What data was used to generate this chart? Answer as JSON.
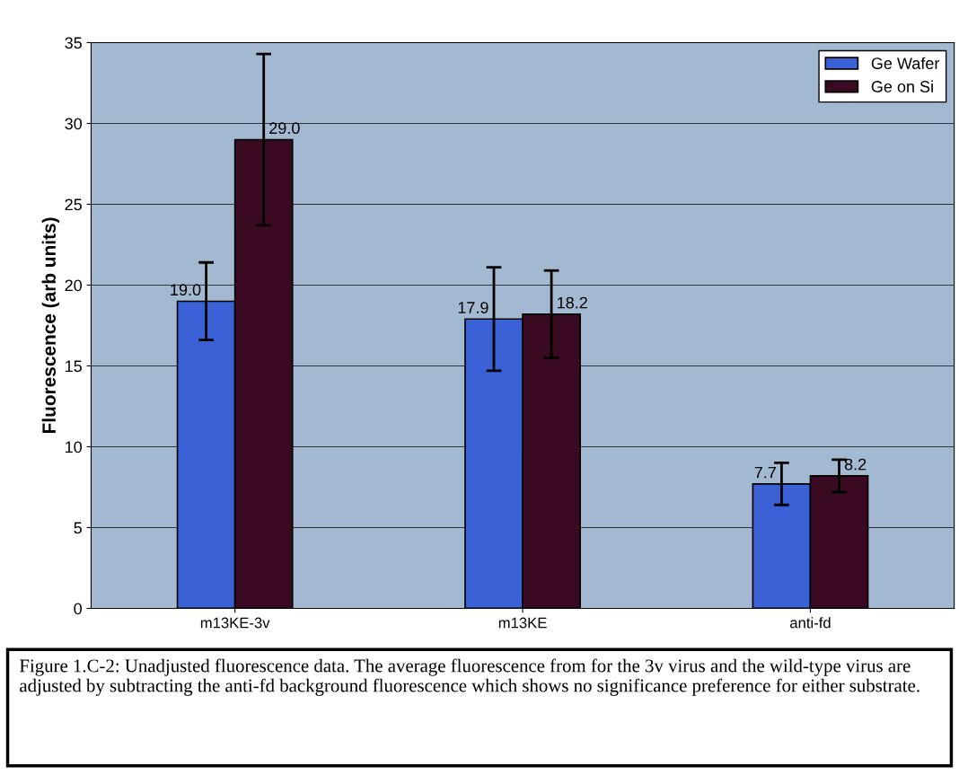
{
  "chart_data": {
    "type": "bar",
    "ylabel": "Fluorescence (arb units)",
    "categories": [
      "m13KE-3v",
      "m13KE",
      "anti-fd"
    ],
    "series": [
      {
        "name": "Ge Wafer",
        "color": "#3a62d6",
        "values": [
          19.0,
          17.9,
          7.7
        ],
        "value_labels": [
          "19.0",
          "17.9",
          "7.7"
        ],
        "errors": [
          2.4,
          3.2,
          1.3
        ]
      },
      {
        "name": "Ge on Si",
        "color": "#3a0a22",
        "values": [
          29.0,
          18.2,
          8.2
        ],
        "value_labels": [
          "29.0",
          "18.2",
          "8.2"
        ],
        "errors": [
          5.3,
          2.7,
          1.0
        ]
      }
    ],
    "ylim": [
      0,
      35
    ],
    "yticks": [
      0,
      5,
      10,
      15,
      20,
      25,
      30,
      35
    ],
    "grid": "y",
    "legend": "top right",
    "data_labels": true,
    "annotations": [
      "Figure 1.C-2: Unadjusted fluorescence data. The average fluorescence from for the 3v virus and the wild-type virus are adjusted by subtracting the anti-fd background fluorescence which shows no significance preference for either substrate."
    ]
  }
}
